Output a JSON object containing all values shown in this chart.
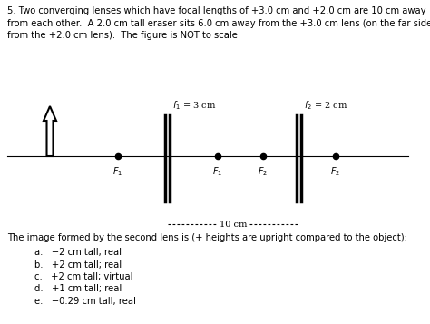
{
  "title_text": "5. Two converging lenses which have focal lengths of +3.0 cm and +2.0 cm are 10 cm away\nfrom each other.  A 2.0 cm tall eraser sits 6.0 cm away from the +3.0 cm lens (on the far side\nfrom the +2.0 cm lens).  The figure is NOT to scale:",
  "question_text": "The image formed by the second lens is (+ heights are upright compared to the object):",
  "choices": [
    "a.   −2 cm tall; real",
    "b.   +2 cm tall; real",
    "c.   +2 cm tall; virtual",
    "d.   +1 cm tall; real",
    "e.   −0.29 cm tall; real"
  ],
  "lens_label1": "$f_1$ = 3 cm",
  "lens_label2": "$f_2$ = 2 cm",
  "focal_label_F1_left": "$F_1$",
  "focal_label_F1_right": "$F_1$",
  "focal_label_F2_left": "$F_2$",
  "focal_label_F2_right": "$F_2$",
  "distance_label": "10 cm",
  "bg_color": "#ffffff",
  "text_color": "#000000",
  "font_size_body": 7.2,
  "font_size_labels": 7.0
}
